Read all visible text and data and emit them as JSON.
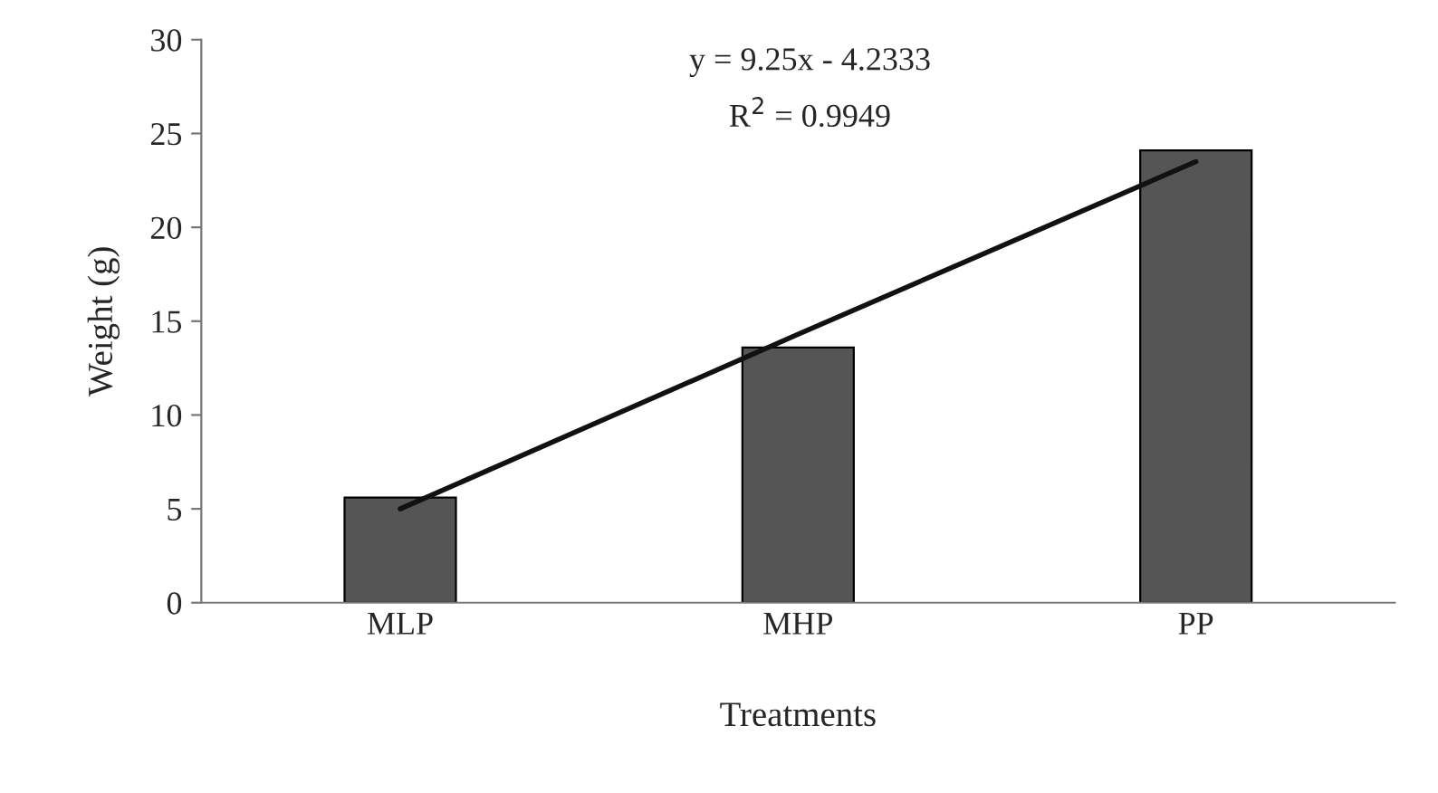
{
  "chart_data": {
    "type": "bar",
    "xlabel": "Treatments",
    "ylabel": "Weight (g)",
    "categories": [
      "MLP",
      "MHP",
      "PP"
    ],
    "series": [
      {
        "color": "#555555",
        "values": [
          5.6,
          13.6,
          24.1
        ]
      },
      {
        "type": "line",
        "color": "#111111",
        "x": [
          "MLP",
          "MHP",
          "PP"
        ],
        "values": [
          5.0,
          14.3,
          23.5
        ]
      }
    ],
    "ylim": [
      0,
      30
    ],
    "yticks": [
      0,
      5,
      10,
      15,
      20,
      25,
      30
    ],
    "grid": false,
    "legend": false,
    "annotations": [
      "y = 9.25x - 4.2333",
      "R$^{2}$ = 0.9949"
    ]
  }
}
